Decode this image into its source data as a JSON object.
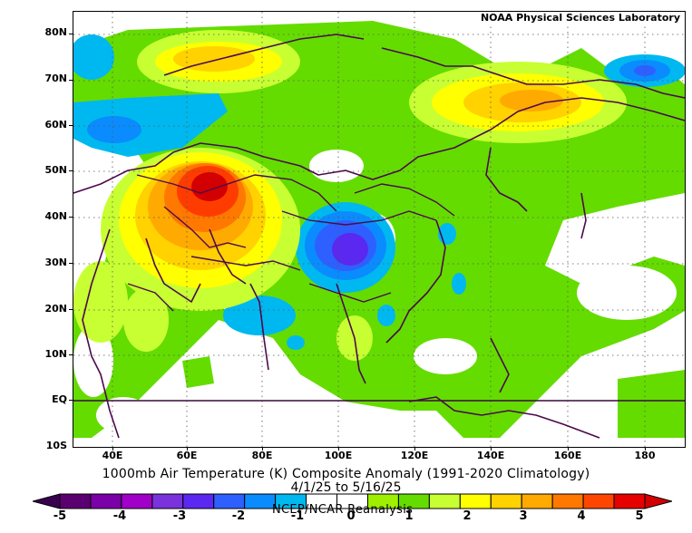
{
  "credit": "NOAA Physical Sciences Laboratory",
  "title": "1000mb Air Temperature (K) Composite Anomaly (1991-2020 Climatology)",
  "subtitle": "4/1/25  to 5/16/25",
  "source": "NCEP/NCAR Reanalysis",
  "lat_labels": [
    "80N",
    "70N",
    "60N",
    "50N",
    "40N",
    "30N",
    "20N",
    "10N",
    "EQ",
    "10S"
  ],
  "lon_labels": [
    "40E",
    "60E",
    "80E",
    "100E",
    "120E",
    "140E",
    "160E",
    "180"
  ],
  "colorbar": {
    "tick_labels": [
      "-5",
      "-4",
      "-3",
      "-2",
      "-1",
      "0",
      "1",
      "2",
      "3",
      "4",
      "5"
    ],
    "colors": [
      "#5a0070",
      "#7a00a8",
      "#a000c8",
      "#7a32dc",
      "#5a28f0",
      "#2e60ff",
      "#0a8cff",
      "#00b8f0",
      "#ffffff",
      "#ffffff",
      "#9ef000",
      "#64dc00",
      "#c8ff32",
      "#ffff00",
      "#ffd200",
      "#ffaa00",
      "#ff7800",
      "#ff4600",
      "#e60000"
    ]
  },
  "anomaly_colors": {
    "neg_weak": "#00b8f0",
    "neg_mid": "#0a8cff",
    "neg_strong": "#2e60ff",
    "neg_core": "#5a28f0",
    "pos_weak": "#64dc00",
    "pos_mid": "#c8ff32",
    "pos_yellow": "#ffff00",
    "pos_gold": "#ffd200",
    "pos_orange": "#ffaa00",
    "pos_dorange": "#ff7800",
    "pos_red": "#ff3c00",
    "pos_core": "#e60000"
  }
}
